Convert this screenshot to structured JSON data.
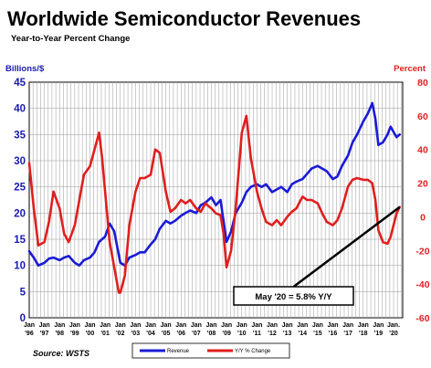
{
  "chart_data": {
    "type": "line",
    "title": "Worldwide Semiconductor Revenues",
    "subtitle": "Year-to-Year Percent Change",
    "left_axis_title": "Billions/$",
    "right_axis_title": "Percent",
    "left_ylim": [
      0,
      45
    ],
    "left_ticks": [
      0,
      5,
      10,
      15,
      20,
      25,
      30,
      35,
      40,
      45
    ],
    "right_ylim": [
      -60,
      80
    ],
    "right_ticks": [
      -60,
      -40,
      -20,
      0,
      20,
      40,
      60,
      80
    ],
    "x_range": [
      1996.0,
      2020.6
    ],
    "x_tick_top": [
      "Jan",
      "Jan",
      "Jan",
      "Jan",
      "Jan",
      "Jan",
      "Jan",
      "Jan",
      "Jan",
      "Jan",
      "Jan",
      "Jan",
      "Jan",
      "Jan",
      "Jan",
      "Jan",
      "Jan",
      "Jan",
      "Jan",
      "Jan",
      "Jan",
      "Jan",
      "Jan",
      "Jan",
      "Jan."
    ],
    "x_tick_bottom": [
      "'96",
      "'97",
      "'98",
      "'99",
      "'00",
      "'01",
      "'02",
      "'03",
      "'04",
      "'05",
      "'06",
      "'07",
      "'08",
      "'09",
      "'10",
      "'11",
      "'12",
      "'13",
      "'14",
      "'15",
      "'16",
      "'17",
      "'18",
      "'19",
      "'20"
    ],
    "grid": true,
    "legend_position": "bottom",
    "series": [
      {
        "name": "Revenue",
        "axis": "left",
        "color": "#1a1ad6",
        "points": [
          [
            1996.0,
            12.7
          ],
          [
            1996.3,
            11.5
          ],
          [
            1996.6,
            10.0
          ],
          [
            1997.0,
            10.5
          ],
          [
            1997.3,
            11.3
          ],
          [
            1997.6,
            11.5
          ],
          [
            1998.0,
            11.0
          ],
          [
            1998.3,
            11.5
          ],
          [
            1998.6,
            11.8
          ],
          [
            1999.0,
            10.5
          ],
          [
            1999.3,
            10.0
          ],
          [
            1999.6,
            11.0
          ],
          [
            2000.0,
            11.5
          ],
          [
            2000.3,
            12.5
          ],
          [
            2000.6,
            14.5
          ],
          [
            2001.0,
            15.5
          ],
          [
            2001.3,
            18.0
          ],
          [
            2001.6,
            16.5
          ],
          [
            2001.9,
            12.0
          ],
          [
            2002.0,
            10.5
          ],
          [
            2002.3,
            10.0
          ],
          [
            2002.6,
            11.5
          ],
          [
            2003.0,
            12.0
          ],
          [
            2003.3,
            12.5
          ],
          [
            2003.6,
            12.5
          ],
          [
            2004.0,
            14.0
          ],
          [
            2004.3,
            15.0
          ],
          [
            2004.6,
            17.0
          ],
          [
            2005.0,
            18.5
          ],
          [
            2005.3,
            18.0
          ],
          [
            2005.6,
            18.5
          ],
          [
            2006.0,
            19.5
          ],
          [
            2006.3,
            20.0
          ],
          [
            2006.6,
            20.5
          ],
          [
            2007.0,
            20.0
          ],
          [
            2007.3,
            21.5
          ],
          [
            2007.6,
            22.0
          ],
          [
            2008.0,
            23.0
          ],
          [
            2008.3,
            21.5
          ],
          [
            2008.6,
            22.5
          ],
          [
            2008.8,
            18.5
          ],
          [
            2009.0,
            14.5
          ],
          [
            2009.3,
            16.5
          ],
          [
            2009.6,
            20.0
          ],
          [
            2010.0,
            22.0
          ],
          [
            2010.3,
            24.0
          ],
          [
            2010.6,
            25.0
          ],
          [
            2011.0,
            25.5
          ],
          [
            2011.3,
            25.0
          ],
          [
            2011.6,
            25.5
          ],
          [
            2012.0,
            24.0
          ],
          [
            2012.3,
            24.5
          ],
          [
            2012.6,
            25.0
          ],
          [
            2013.0,
            24.0
          ],
          [
            2013.3,
            25.5
          ],
          [
            2013.6,
            26.0
          ],
          [
            2014.0,
            26.5
          ],
          [
            2014.3,
            27.5
          ],
          [
            2014.6,
            28.5
          ],
          [
            2015.0,
            29.0
          ],
          [
            2015.3,
            28.5
          ],
          [
            2015.6,
            28.0
          ],
          [
            2016.0,
            26.5
          ],
          [
            2016.3,
            27.0
          ],
          [
            2016.6,
            29.0
          ],
          [
            2017.0,
            31.0
          ],
          [
            2017.3,
            33.5
          ],
          [
            2017.6,
            35.0
          ],
          [
            2018.0,
            37.5
          ],
          [
            2018.3,
            39.0
          ],
          [
            2018.6,
            41.0
          ],
          [
            2018.8,
            38.0
          ],
          [
            2019.0,
            33.0
          ],
          [
            2019.3,
            33.5
          ],
          [
            2019.6,
            35.0
          ],
          [
            2019.8,
            36.5
          ],
          [
            2020.0,
            35.5
          ],
          [
            2020.2,
            34.5
          ],
          [
            2020.4,
            35.0
          ]
        ]
      },
      {
        "name": "Y/Y % Change",
        "axis": "right",
        "color": "#e01e1e",
        "points": [
          [
            1996.0,
            32
          ],
          [
            1996.3,
            5
          ],
          [
            1996.6,
            -17
          ],
          [
            1997.0,
            -15
          ],
          [
            1997.3,
            -3
          ],
          [
            1997.6,
            15
          ],
          [
            1998.0,
            5
          ],
          [
            1998.3,
            -10
          ],
          [
            1998.6,
            -15
          ],
          [
            1999.0,
            -5
          ],
          [
            1999.3,
            10
          ],
          [
            1999.6,
            25
          ],
          [
            2000.0,
            30
          ],
          [
            2000.3,
            40
          ],
          [
            2000.6,
            50
          ],
          [
            2000.8,
            35
          ],
          [
            2001.0,
            15
          ],
          [
            2001.3,
            -15
          ],
          [
            2001.6,
            -30
          ],
          [
            2001.9,
            -45
          ],
          [
            2002.0,
            -45
          ],
          [
            2002.3,
            -35
          ],
          [
            2002.6,
            -5
          ],
          [
            2003.0,
            15
          ],
          [
            2003.3,
            23
          ],
          [
            2003.6,
            23
          ],
          [
            2004.0,
            25
          ],
          [
            2004.3,
            40
          ],
          [
            2004.6,
            38
          ],
          [
            2005.0,
            15
          ],
          [
            2005.3,
            3
          ],
          [
            2005.6,
            5
          ],
          [
            2006.0,
            10
          ],
          [
            2006.3,
            8
          ],
          [
            2006.6,
            10
          ],
          [
            2007.0,
            5
          ],
          [
            2007.3,
            3
          ],
          [
            2007.6,
            8
          ],
          [
            2008.0,
            5
          ],
          [
            2008.3,
            2
          ],
          [
            2008.6,
            1
          ],
          [
            2008.8,
            -10
          ],
          [
            2009.0,
            -30
          ],
          [
            2009.3,
            -20
          ],
          [
            2009.6,
            5
          ],
          [
            2010.0,
            50
          ],
          [
            2010.3,
            60
          ],
          [
            2010.6,
            35
          ],
          [
            2011.0,
            15
          ],
          [
            2011.3,
            5
          ],
          [
            2011.6,
            -3
          ],
          [
            2012.0,
            -5
          ],
          [
            2012.3,
            -2
          ],
          [
            2012.6,
            -5
          ],
          [
            2013.0,
            0
          ],
          [
            2013.3,
            3
          ],
          [
            2013.6,
            5
          ],
          [
            2014.0,
            12
          ],
          [
            2014.3,
            10
          ],
          [
            2014.6,
            10
          ],
          [
            2015.0,
            8
          ],
          [
            2015.3,
            2
          ],
          [
            2015.6,
            -3
          ],
          [
            2016.0,
            -5
          ],
          [
            2016.3,
            -2
          ],
          [
            2016.6,
            5
          ],
          [
            2017.0,
            18
          ],
          [
            2017.3,
            22
          ],
          [
            2017.6,
            23
          ],
          [
            2018.0,
            22
          ],
          [
            2018.3,
            22
          ],
          [
            2018.6,
            20
          ],
          [
            2018.8,
            10
          ],
          [
            2019.0,
            -8
          ],
          [
            2019.3,
            -15
          ],
          [
            2019.6,
            -16
          ],
          [
            2019.8,
            -12
          ],
          [
            2020.0,
            -5
          ],
          [
            2020.2,
            2
          ],
          [
            2020.4,
            5.8
          ]
        ]
      }
    ],
    "annotation": {
      "text": "May '20 = 5.8% Y/Y",
      "target_x": 2020.4,
      "target_y": 5.8
    },
    "source": "Source: WSTS"
  }
}
